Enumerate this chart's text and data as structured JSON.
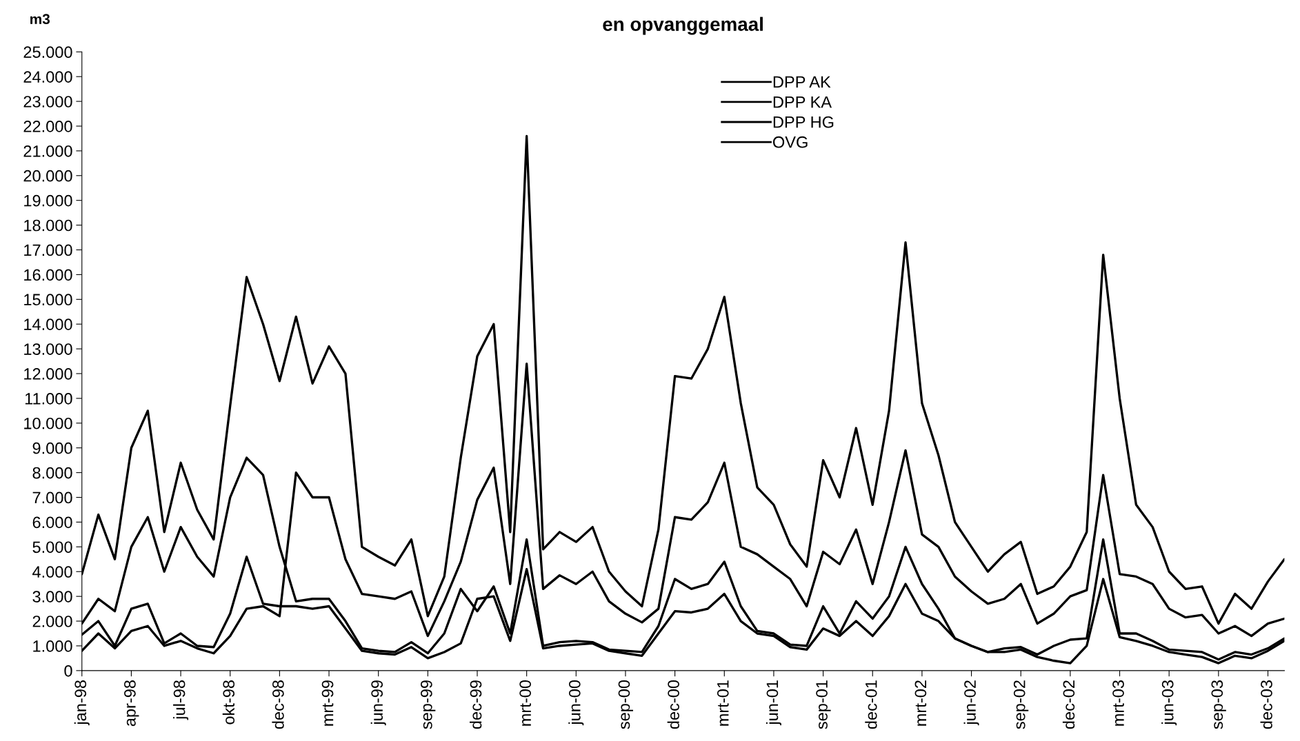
{
  "chart_data": {
    "type": "line",
    "title": "en opvanggemaal",
    "ylabel": "m3",
    "categories": [
      "jan-98",
      null,
      null,
      "apr-98",
      null,
      null,
      "jul-98",
      null,
      null,
      "okt-98",
      null,
      null,
      "dec-98",
      null,
      null,
      "mrt-99",
      null,
      null,
      "jun-99",
      null,
      null,
      "sep-99",
      null,
      null,
      "dec-99",
      null,
      null,
      "mrt-00",
      null,
      null,
      "jun-00",
      null,
      null,
      "sep-00",
      null,
      null,
      "dec-00",
      null,
      null,
      "mrt-01",
      null,
      null,
      "jun-01",
      null,
      null,
      "sep-01",
      null,
      null,
      "dec-01",
      null,
      null,
      "mrt-02",
      null,
      null,
      "jun-02",
      null,
      null,
      "sep-02",
      null,
      null,
      "dec-02",
      null,
      null,
      "mrt-03",
      null,
      null,
      "jun-03",
      null,
      null,
      "sep-03",
      null,
      null,
      "dec-03",
      null
    ],
    "ylim": [
      0,
      25000
    ],
    "yticks": [
      {
        "value": 0,
        "label": "0"
      },
      {
        "value": 1000,
        "label": "1.000"
      },
      {
        "value": 2000,
        "label": "2.000"
      },
      {
        "value": 3000,
        "label": "3.000"
      },
      {
        "value": 4000,
        "label": "4.000"
      },
      {
        "value": 5000,
        "label": "5.000"
      },
      {
        "value": 6000,
        "label": "6.000"
      },
      {
        "value": 7000,
        "label": "7.000"
      },
      {
        "value": 8000,
        "label": "8.000"
      },
      {
        "value": 9000,
        "label": "9.000"
      },
      {
        "value": 10000,
        "label": "10.000"
      },
      {
        "value": 11000,
        "label": "11.000"
      },
      {
        "value": 12000,
        "label": "12.000"
      },
      {
        "value": 13000,
        "label": "13.000"
      },
      {
        "value": 14000,
        "label": "14.000"
      },
      {
        "value": 15000,
        "label": "15.000"
      },
      {
        "value": 16000,
        "label": "16.000"
      },
      {
        "value": 17000,
        "label": "17.000"
      },
      {
        "value": 18000,
        "label": "18.000"
      },
      {
        "value": 19000,
        "label": "19.000"
      },
      {
        "value": 20000,
        "label": "20.000"
      },
      {
        "value": 21000,
        "label": "21.000"
      },
      {
        "value": 22000,
        "label": "22.000"
      },
      {
        "value": 23000,
        "label": "23.000"
      },
      {
        "value": 24000,
        "label": "24.000"
      },
      {
        "value": 25000,
        "label": "25.000"
      }
    ],
    "grid": false,
    "legend": "top",
    "marker": "none",
    "line_style": "solid",
    "series": [
      {
        "name": "DPP AK",
        "color": "#000000",
        "values": [
          3900,
          6300,
          4500,
          9000,
          10500,
          5600,
          8400,
          6500,
          5300,
          10700,
          15900,
          14000,
          11700,
          14300,
          11600,
          13100,
          12000,
          5000,
          4600,
          4250,
          5300,
          2200,
          3800,
          8600,
          12700,
          14000,
          5600,
          21600,
          4900,
          5600,
          5200,
          5800,
          4000,
          3200,
          2600,
          5700,
          11900,
          11800,
          13000,
          15100,
          10800,
          7400,
          6700,
          5100,
          4200,
          8500,
          7000,
          9800,
          6700,
          10500,
          17300,
          10800,
          8700,
          6000,
          5000,
          4000,
          4700,
          5200,
          3100,
          3400,
          4200,
          5600,
          16800,
          11000,
          6700,
          5800,
          4000,
          3300,
          3400,
          1900,
          3100,
          2500,
          3600,
          4500
        ]
      },
      {
        "name": "DPP KA",
        "color": "#000000",
        "values": [
          1900,
          2900,
          2400,
          5000,
          6200,
          4000,
          5800,
          4600,
          3800,
          7000,
          8600,
          7900,
          5000,
          2800,
          2900,
          2900,
          2000,
          900,
          800,
          750,
          1150,
          700,
          1500,
          3300,
          2400,
          3400,
          1500,
          5300,
          1000,
          1150,
          1200,
          1150,
          850,
          800,
          750,
          1800,
          3700,
          3300,
          3500,
          4400,
          2600,
          1600,
          1500,
          1050,
          1000,
          2600,
          1500,
          2800,
          2100,
          3000,
          5000,
          3500,
          2500,
          1300,
          1000,
          750,
          900,
          950,
          650,
          1000,
          1250,
          1300,
          5300,
          1500,
          1500,
          1200,
          850,
          800,
          750,
          450,
          750,
          650,
          900,
          1300
        ]
      },
      {
        "name": "DPP HG",
        "color": "#000000",
        "values": [
          1450,
          2000,
          1000,
          2500,
          2700,
          1100,
          1500,
          1000,
          950,
          2300,
          4600,
          2700,
          2600,
          2600,
          2500,
          2600,
          1700,
          800,
          700,
          650,
          950,
          500,
          750,
          1100,
          2900,
          3000,
          1200,
          4100,
          900,
          1000,
          1050,
          1100,
          800,
          700,
          600,
          1500,
          2400,
          2350,
          2500,
          3100,
          2000,
          1500,
          1400,
          950,
          850,
          1700,
          1400,
          2000,
          1400,
          2200,
          3500,
          2300,
          2000,
          1300,
          1000,
          750,
          750,
          850,
          550,
          400,
          300,
          1000,
          3700,
          1350,
          1200,
          1000,
          750,
          650,
          550,
          300,
          600,
          500,
          800,
          1200
        ]
      },
      {
        "name": "OVG",
        "color": "#000000",
        "values": [
          800,
          1500,
          900,
          1600,
          1800,
          1000,
          1200,
          900,
          700,
          1400,
          2500,
          2600,
          2200,
          8000,
          7000,
          7000,
          4500,
          3100,
          3000,
          2900,
          3200,
          1400,
          2800,
          4400,
          6900,
          8200,
          3500,
          12400,
          3300,
          3850,
          3500,
          4000,
          2800,
          2300,
          1950,
          2500,
          6200,
          6100,
          6800,
          8400,
          5000,
          4700,
          4200,
          3700,
          2600,
          4800,
          4300,
          5700,
          3500,
          6000,
          8900,
          5500,
          5000,
          3800,
          3200,
          2700,
          2900,
          3500,
          1900,
          2300,
          3000,
          3250,
          7900,
          3900,
          3800,
          3500,
          2500,
          2150,
          2250,
          1500,
          1800,
          1400,
          1900,
          2100
        ]
      }
    ]
  }
}
